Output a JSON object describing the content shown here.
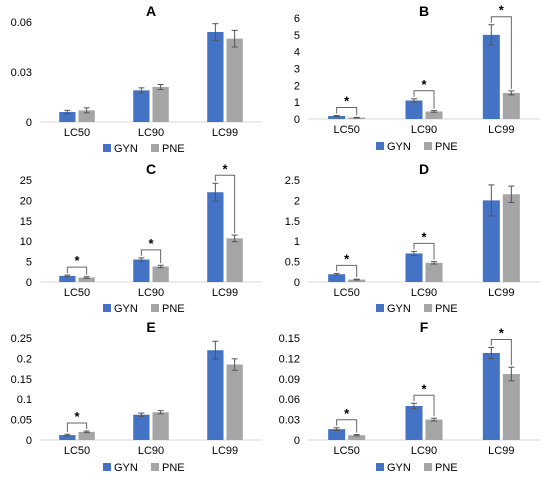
{
  "colors": {
    "GYN": "#4472c4",
    "PNE": "#a5a5a5",
    "axis": "#d9d9d9",
    "errorbar": "#555555",
    "bracket": "#666666"
  },
  "legend": {
    "gyn": "GYN",
    "pne": "PNE"
  },
  "chart_data": [
    {
      "type": "bar",
      "title": "A",
      "categories": [
        "LC50",
        "LC90",
        "LC99"
      ],
      "series": [
        {
          "name": "GYN",
          "values": [
            0.006,
            0.019,
            0.054
          ],
          "errors": [
            0.001,
            0.0015,
            0.005
          ]
        },
        {
          "name": "PNE",
          "values": [
            0.007,
            0.021,
            0.05
          ],
          "errors": [
            0.0015,
            0.0015,
            0.005
          ]
        }
      ],
      "yticks": [
        "0",
        "0.03",
        "0.06"
      ],
      "ylim": [
        0,
        0.06
      ],
      "grid": false,
      "significance": [],
      "legend_position": "bottom"
    },
    {
      "type": "bar",
      "title": "B",
      "categories": [
        "LC50",
        "LC90",
        "LC99"
      ],
      "series": [
        {
          "name": "GYN",
          "values": [
            0.18,
            1.1,
            5.0
          ],
          "errors": [
            0.03,
            0.1,
            0.6
          ]
        },
        {
          "name": "PNE",
          "values": [
            0.08,
            0.45,
            1.55
          ],
          "errors": [
            0.02,
            0.05,
            0.12
          ]
        }
      ],
      "yticks": [
        "0",
        "1",
        "2",
        "3",
        "4",
        "5",
        "6"
      ],
      "ylim": [
        0,
        6
      ],
      "grid": false,
      "significance": [
        "LC50",
        "LC90",
        "LC99"
      ],
      "legend_position": "bottom"
    },
    {
      "type": "bar",
      "title": "C",
      "categories": [
        "LC50",
        "LC90",
        "LC99"
      ],
      "series": [
        {
          "name": "GYN",
          "values": [
            1.5,
            5.5,
            22.0
          ],
          "errors": [
            0.2,
            0.4,
            2.2
          ]
        },
        {
          "name": "PNE",
          "values": [
            1.1,
            3.8,
            10.7
          ],
          "errors": [
            0.2,
            0.3,
            0.8
          ]
        }
      ],
      "yticks": [
        "0",
        "5",
        "10",
        "15",
        "20",
        "25"
      ],
      "ylim": [
        0,
        25
      ],
      "grid": false,
      "significance": [
        "LC50",
        "LC90",
        "LC99"
      ],
      "legend_position": "bottom"
    },
    {
      "type": "bar",
      "title": "D",
      "categories": [
        "LC50",
        "LC90",
        "LC99"
      ],
      "series": [
        {
          "name": "GYN",
          "values": [
            0.19,
            0.7,
            2.0
          ],
          "errors": [
            0.02,
            0.05,
            0.38
          ]
        },
        {
          "name": "PNE",
          "values": [
            0.06,
            0.47,
            2.15
          ],
          "errors": [
            0.01,
            0.03,
            0.2
          ]
        }
      ],
      "yticks": [
        "0",
        "0.5",
        "1",
        "1.5",
        "2",
        "2.5"
      ],
      "ylim": [
        0,
        2.5
      ],
      "grid": false,
      "significance": [
        "LC50",
        "LC90"
      ],
      "legend_position": "bottom"
    },
    {
      "type": "bar",
      "title": "E",
      "categories": [
        "LC50",
        "LC90",
        "LC99"
      ],
      "series": [
        {
          "name": "GYN",
          "values": [
            0.012,
            0.062,
            0.22
          ],
          "errors": [
            0.002,
            0.004,
            0.022
          ]
        },
        {
          "name": "PNE",
          "values": [
            0.02,
            0.068,
            0.185
          ],
          "errors": [
            0.002,
            0.004,
            0.014
          ]
        }
      ],
      "yticks": [
        "0",
        "0.05",
        "0.1",
        "0.15",
        "0.2",
        "0.25"
      ],
      "ylim": [
        0,
        0.25
      ],
      "grid": false,
      "significance": [
        "LC50"
      ],
      "legend_position": "bottom"
    },
    {
      "type": "bar",
      "title": "F",
      "categories": [
        "LC50",
        "LC90",
        "LC99"
      ],
      "series": [
        {
          "name": "GYN",
          "values": [
            0.016,
            0.05,
            0.128
          ],
          "errors": [
            0.002,
            0.004,
            0.008
          ]
        },
        {
          "name": "PNE",
          "values": [
            0.007,
            0.03,
            0.097
          ],
          "errors": [
            0.001,
            0.002,
            0.01
          ]
        }
      ],
      "yticks": [
        "0",
        "0.03",
        "0.06",
        "0.09",
        "0.12",
        "0.15"
      ],
      "ylim": [
        0,
        0.15
      ],
      "grid": false,
      "significance": [
        "LC50",
        "LC90",
        "LC99"
      ],
      "legend_position": "bottom"
    }
  ]
}
